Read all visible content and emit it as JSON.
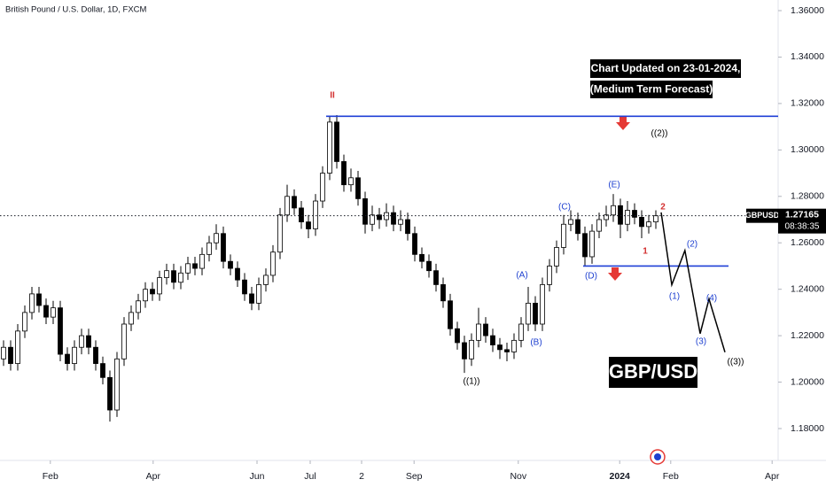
{
  "chart_data": {
    "type": "candlestick",
    "title": "British Pound / U.S. Dollar, 1D, FXCM",
    "symbol": "GBPUSD",
    "last_price": 1.27165,
    "countdown": "08:38:35",
    "notes": [
      "Chart Updated on 23-01-2024,",
      "(Medium Term Forecast)",
      "GBP/USD"
    ],
    "xlim": [
      -0.5,
      109.25
    ],
    "xticks": [
      {
        "value": 6.6,
        "label": "Feb"
      },
      {
        "value": 21.1,
        "label": "Apr"
      },
      {
        "value": 35.75,
        "label": "Jun"
      },
      {
        "value": 43.25,
        "label": "Jul"
      },
      {
        "value": 50.5,
        "label": "2"
      },
      {
        "value": 57.9,
        "label": "Sep"
      },
      {
        "value": 72.6,
        "label": "Nov"
      },
      {
        "value": 86.9,
        "label": "2024"
      },
      {
        "value": 94.1,
        "label": "Feb"
      },
      {
        "value": 108.4,
        "label": "Apr"
      }
    ],
    "ylim": [
      1.16627,
      1.36458
    ],
    "yticks": [
      {
        "value": 1.36,
        "label": "1.36000"
      },
      {
        "value": 1.34,
        "label": "1.34000"
      },
      {
        "value": 1.32,
        "label": "1.32000"
      },
      {
        "value": 1.3,
        "label": "1.30000"
      },
      {
        "value": 1.28,
        "label": "1.28000"
      },
      {
        "value": 1.26,
        "label": "1.26000"
      },
      {
        "value": 1.24,
        "label": "1.24000"
      },
      {
        "value": 1.22,
        "label": "1.22000"
      },
      {
        "value": 1.2,
        "label": "1.20000"
      },
      {
        "value": 1.18,
        "label": "1.18000"
      }
    ],
    "up_color": "#ffffff",
    "down_color": "#000000",
    "open": [
      1.21,
      1.215,
      1.208,
      1.222,
      1.23,
      1.238,
      1.233,
      1.228,
      1.232,
      1.212,
      1.208,
      1.215,
      1.22,
      1.215,
      1.208,
      1.202,
      1.188,
      1.21,
      1.225,
      1.23,
      1.235,
      1.24,
      1.238,
      1.245,
      1.248,
      1.243,
      1.247,
      1.251,
      1.249,
      1.255,
      1.26,
      1.264,
      1.252,
      1.249,
      1.244,
      1.238,
      1.234,
      1.242,
      1.246,
      1.256,
      1.272,
      1.28,
      1.275,
      1.269,
      1.266,
      1.278,
      1.29,
      1.312,
      1.295,
      1.285,
      1.288,
      1.279,
      1.268,
      1.272,
      1.27,
      1.273,
      1.268,
      1.27,
      1.264,
      1.255,
      1.252,
      1.248,
      1.242,
      1.235,
      1.223,
      1.217,
      1.21,
      1.218,
      1.225,
      1.22,
      1.216,
      1.214,
      1.213,
      1.218,
      1.225,
      1.234,
      1.225,
      1.242,
      1.25,
      1.258,
      1.268,
      1.27,
      1.264,
      1.254,
      1.265,
      1.27,
      1.272,
      1.276,
      1.268,
      1.274,
      1.271,
      1.267,
      1.269
    ],
    "high": [
      1.218,
      1.218,
      1.225,
      1.233,
      1.241,
      1.241,
      1.236,
      1.235,
      1.235,
      1.215,
      1.218,
      1.223,
      1.223,
      1.218,
      1.211,
      1.205,
      1.213,
      1.228,
      1.233,
      1.238,
      1.243,
      1.243,
      1.248,
      1.251,
      1.251,
      1.25,
      1.254,
      1.254,
      1.258,
      1.263,
      1.268,
      1.267,
      1.255,
      1.252,
      1.247,
      1.241,
      1.245,
      1.249,
      1.259,
      1.275,
      1.285,
      1.283,
      1.278,
      1.272,
      1.281,
      1.293,
      1.3145,
      1.315,
      1.298,
      1.292,
      1.291,
      1.282,
      1.276,
      1.275,
      1.277,
      1.276,
      1.274,
      1.273,
      1.267,
      1.258,
      1.255,
      1.251,
      1.245,
      1.238,
      1.226,
      1.22,
      1.221,
      1.232,
      1.228,
      1.223,
      1.219,
      1.217,
      1.221,
      1.228,
      1.241,
      1.237,
      1.245,
      1.253,
      1.261,
      1.272,
      1.274,
      1.273,
      1.267,
      1.268,
      1.273,
      1.276,
      1.281,
      1.279,
      1.278,
      1.277,
      1.274,
      1.272,
      1.274
    ],
    "low": [
      1.207,
      1.205,
      1.205,
      1.219,
      1.227,
      1.23,
      1.225,
      1.225,
      1.209,
      1.205,
      1.205,
      1.212,
      1.212,
      1.205,
      1.199,
      1.183,
      1.185,
      1.207,
      1.222,
      1.227,
      1.232,
      1.235,
      1.235,
      1.242,
      1.24,
      1.24,
      1.244,
      1.246,
      1.246,
      1.252,
      1.257,
      1.249,
      1.246,
      1.241,
      1.235,
      1.231,
      1.231,
      1.239,
      1.243,
      1.253,
      1.269,
      1.272,
      1.266,
      1.262,
      1.263,
      1.275,
      1.287,
      1.292,
      1.282,
      1.282,
      1.276,
      1.264,
      1.265,
      1.266,
      1.267,
      1.265,
      1.265,
      1.261,
      1.252,
      1.249,
      1.245,
      1.239,
      1.232,
      1.22,
      1.214,
      1.204,
      1.207,
      1.215,
      1.217,
      1.213,
      1.21,
      1.209,
      1.21,
      1.215,
      1.222,
      1.222,
      1.222,
      1.239,
      1.247,
      1.255,
      1.265,
      1.261,
      1.25,
      1.251,
      1.262,
      1.267,
      1.269,
      1.262,
      1.265,
      1.268,
      1.262,
      1.264,
      1.266
    ],
    "close": [
      1.215,
      1.208,
      1.222,
      1.23,
      1.238,
      1.233,
      1.228,
      1.232,
      1.212,
      1.208,
      1.215,
      1.22,
      1.215,
      1.208,
      1.202,
      1.188,
      1.21,
      1.225,
      1.23,
      1.235,
      1.24,
      1.238,
      1.245,
      1.248,
      1.243,
      1.247,
      1.251,
      1.249,
      1.255,
      1.26,
      1.264,
      1.252,
      1.249,
      1.244,
      1.238,
      1.234,
      1.242,
      1.246,
      1.256,
      1.272,
      1.28,
      1.275,
      1.269,
      1.266,
      1.278,
      1.29,
      1.312,
      1.295,
      1.285,
      1.288,
      1.279,
      1.268,
      1.272,
      1.27,
      1.273,
      1.268,
      1.27,
      1.264,
      1.255,
      1.252,
      1.248,
      1.242,
      1.235,
      1.223,
      1.217,
      1.21,
      1.218,
      1.225,
      1.22,
      1.216,
      1.214,
      1.213,
      1.218,
      1.225,
      1.234,
      1.225,
      1.242,
      1.25,
      1.258,
      1.268,
      1.27,
      1.264,
      1.254,
      1.265,
      1.27,
      1.272,
      1.276,
      1.268,
      1.274,
      1.271,
      1.267,
      1.269,
      1.27165
    ],
    "levels": [
      1.3145,
      1.25
    ],
    "level_x": [
      [
        45.5,
        109.25
      ],
      [
        81.75,
        102.25
      ]
    ],
    "level_color": "#1f3fd6",
    "forecast_x": [
      92.75,
      94.25,
      96.1,
      98.25,
      99.5,
      101.75
    ],
    "forecast_y": [
      1.2731,
      1.2419,
      1.2567,
      1.2209,
      1.2358,
      1.2129
    ],
    "annotations": [
      {
        "text": "II",
        "color": "#d32f2f"
      },
      {
        "text": "((2))",
        "color": "#000000"
      },
      {
        "text": "(E)",
        "color": "#1e40d0"
      },
      {
        "text": "(C)",
        "color": "#1e40d0"
      },
      {
        "text": "2",
        "color": "#d32f2f"
      },
      {
        "text": "1",
        "color": "#d32f2f"
      },
      {
        "text": "(A)",
        "color": "#1e40d0"
      },
      {
        "text": "(D)",
        "color": "#1e40d0"
      },
      {
        "text": "(B)",
        "color": "#1e40d0"
      },
      {
        "text": "((1))",
        "color": "#000000"
      },
      {
        "text": "(2)",
        "color": "#1e40d0"
      },
      {
        "text": "(1)",
        "color": "#1e40d0"
      },
      {
        "text": "(4)",
        "color": "#1e40d0"
      },
      {
        "text": "(3)",
        "color": "#1e40d0"
      },
      {
        "text": "((3))",
        "color": "#000000"
      }
    ]
  }
}
